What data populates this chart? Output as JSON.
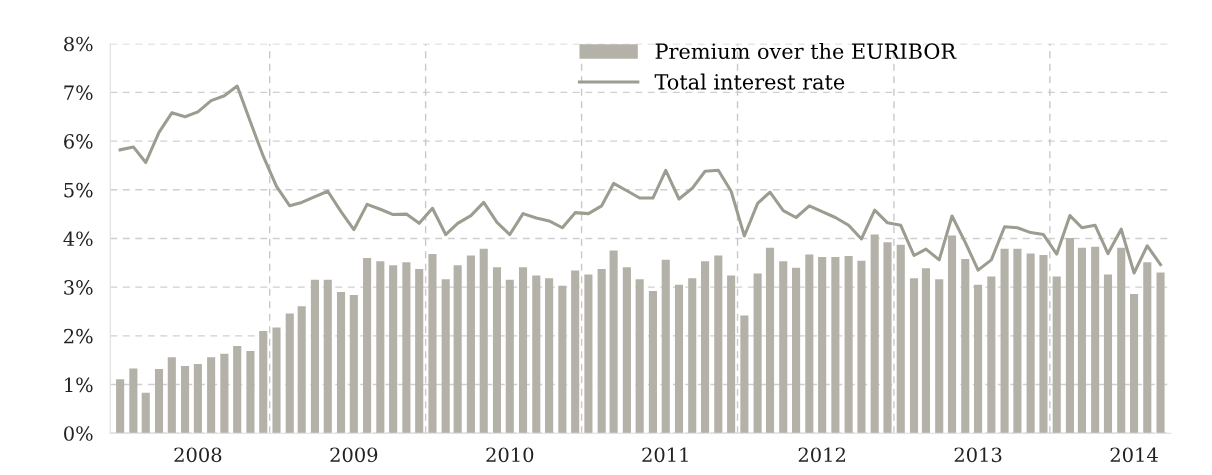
{
  "chart_data": {
    "type": "bar",
    "x": [
      "2008-01",
      "2008-02",
      "2008-03",
      "2008-04",
      "2008-05",
      "2008-06",
      "2008-07",
      "2008-08",
      "2008-09",
      "2008-10",
      "2008-11",
      "2008-12",
      "2009-01",
      "2009-02",
      "2009-03",
      "2009-04",
      "2009-05",
      "2009-06",
      "2009-07",
      "2009-08",
      "2009-09",
      "2009-10",
      "2009-11",
      "2009-12",
      "2010-01",
      "2010-02",
      "2010-03",
      "2010-04",
      "2010-05",
      "2010-06",
      "2010-07",
      "2010-08",
      "2010-09",
      "2010-10",
      "2010-11",
      "2010-12",
      "2011-01",
      "2011-02",
      "2011-03",
      "2011-04",
      "2011-05",
      "2011-06",
      "2011-07",
      "2011-08",
      "2011-09",
      "2011-10",
      "2011-11",
      "2011-12",
      "2012-01",
      "2012-02",
      "2012-03",
      "2012-04",
      "2012-05",
      "2012-06",
      "2012-07",
      "2012-08",
      "2012-09",
      "2012-10",
      "2012-11",
      "2012-12",
      "2013-01",
      "2013-02",
      "2013-03",
      "2013-04",
      "2013-05",
      "2013-06",
      "2013-07",
      "2013-08",
      "2013-09",
      "2013-10",
      "2013-11",
      "2013-12",
      "2014-01",
      "2014-02",
      "2014-03",
      "2014-04",
      "2014-05",
      "2014-06",
      "2014-07",
      "2014-08",
      "2014-09"
    ],
    "series": [
      {
        "name": "Premium over the EURIBOR",
        "color": "#b4b2a8",
        "values": [
          1.11,
          1.33,
          0.83,
          1.32,
          1.56,
          1.38,
          1.42,
          1.56,
          1.63,
          1.79,
          1.69,
          2.1,
          2.17,
          2.46,
          2.61,
          3.15,
          3.15,
          2.9,
          2.84,
          3.6,
          3.53,
          3.45,
          3.51,
          3.37,
          3.68,
          3.16,
          3.45,
          3.65,
          3.79,
          3.41,
          3.15,
          3.41,
          3.24,
          3.18,
          3.03,
          3.34,
          3.26,
          3.37,
          3.75,
          3.41,
          3.16,
          2.92,
          3.56,
          3.05,
          3.18,
          3.53,
          3.65,
          3.24,
          2.42,
          3.28,
          3.81,
          3.53,
          3.4,
          3.67,
          3.62,
          3.62,
          3.64,
          3.54,
          4.08,
          3.92,
          3.87,
          3.18,
          3.39,
          3.16,
          4.06,
          3.58,
          3.05,
          3.22,
          3.79,
          3.79,
          3.69,
          3.66,
          3.22,
          4.01,
          3.81,
          3.83,
          3.26,
          3.81,
          2.86,
          3.51,
          3.3
        ]
      },
      {
        "name": "Total interest rate",
        "type": "line",
        "color": "#9c9c90",
        "values": [
          5.82,
          5.88,
          5.56,
          6.18,
          6.58,
          6.5,
          6.6,
          6.83,
          6.93,
          7.13,
          6.39,
          5.69,
          5.07,
          4.67,
          4.74,
          4.86,
          4.97,
          4.55,
          4.18,
          4.7,
          4.6,
          4.49,
          4.5,
          4.31,
          4.62,
          4.08,
          4.31,
          4.47,
          4.74,
          4.33,
          4.08,
          4.51,
          4.42,
          4.36,
          4.22,
          4.53,
          4.51,
          4.67,
          5.13,
          4.98,
          4.83,
          4.83,
          5.4,
          4.81,
          5.03,
          5.38,
          5.4,
          4.97,
          4.05,
          4.72,
          4.95,
          4.57,
          4.43,
          4.67,
          4.55,
          4.43,
          4.27,
          3.99,
          4.58,
          4.32,
          4.27,
          3.65,
          3.78,
          3.56,
          4.46,
          3.92,
          3.35,
          3.56,
          4.24,
          4.22,
          4.12,
          4.08,
          3.68,
          4.47,
          4.22,
          4.27,
          3.69,
          4.19,
          3.29,
          3.85,
          3.46
        ]
      }
    ],
    "xlim": [
      "2007-12-09",
      "2014-09-25"
    ],
    "xticks": [
      {
        "value": "2008-07-01",
        "label": "2008"
      },
      {
        "value": "2009-07-01",
        "label": "2009"
      },
      {
        "value": "2010-07-01",
        "label": "2010"
      },
      {
        "value": "2011-07-01",
        "label": "2011"
      },
      {
        "value": "2012-07-01",
        "label": "2012"
      },
      {
        "value": "2013-07-01",
        "label": "2013"
      },
      {
        "value": "2014-07-01",
        "label": "2014"
      }
    ],
    "ylim": [
      0,
      8
    ],
    "yticks": [
      {
        "value": 0,
        "label": "0%"
      },
      {
        "value": 1,
        "label": "1%"
      },
      {
        "value": 2,
        "label": "2%"
      },
      {
        "value": 3,
        "label": "3%"
      },
      {
        "value": 4,
        "label": "4%"
      },
      {
        "value": 5,
        "label": "5%"
      },
      {
        "value": 6,
        "label": "6%"
      },
      {
        "value": 7,
        "label": "7%"
      },
      {
        "value": 8,
        "label": "8%"
      }
    ],
    "ref_lines": [
      {
        "axis": "x",
        "value": "2008-12-16",
        "color": "#c8c8c8",
        "line_style": "dashed"
      },
      {
        "axis": "x",
        "value": "2009-12-16",
        "color": "#c8c8c8",
        "line_style": "dashed"
      },
      {
        "axis": "x",
        "value": "2010-12-16",
        "color": "#c8c8c8",
        "line_style": "dashed"
      },
      {
        "axis": "x",
        "value": "2011-12-16",
        "color": "#c8c8c8",
        "line_style": "dashed"
      },
      {
        "axis": "x",
        "value": "2012-12-16",
        "color": "#c8c8c8",
        "line_style": "dashed"
      },
      {
        "axis": "x",
        "value": "2013-12-16",
        "color": "#c8c8c8",
        "line_style": "dashed"
      }
    ],
    "grid": "y",
    "legend": "top",
    "line_style": "solid",
    "marker": "none"
  }
}
